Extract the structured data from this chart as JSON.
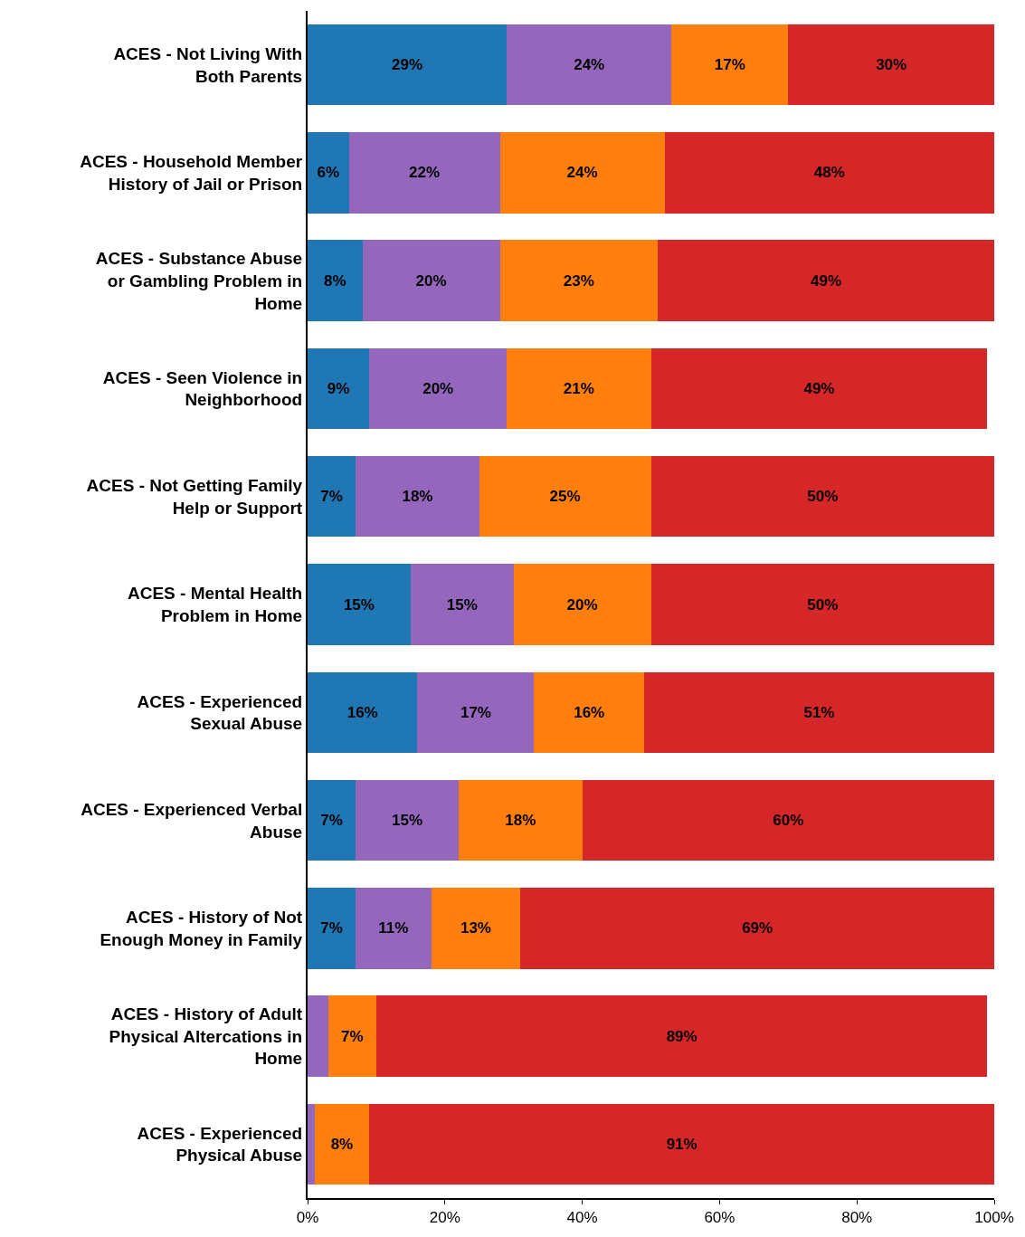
{
  "chart_data": {
    "type": "bar",
    "orientation": "horizontal",
    "stacked": true,
    "categories": [
      "ACES - Not Living With\nBoth Parents",
      "ACES - Household Member\nHistory of Jail or Prison",
      "ACES - Substance Abuse\nor Gambling Problem in\nHome",
      "ACES - Seen Violence in\nNeighborhood",
      "ACES - Not Getting Family\nHelp or Support",
      "ACES - Mental Health\nProblem in Home",
      "ACES - Experienced\nSexual Abuse",
      "ACES - Experienced Verbal\nAbuse",
      "ACES - History of Not\nEnough Money in Family",
      "ACES - History of Adult\nPhysical Altercations in\nHome",
      "ACES - Experienced\nPhysical Abuse"
    ],
    "series": [
      {
        "color": "#1f77b4",
        "values": [
          29,
          6,
          8,
          9,
          7,
          15,
          16,
          7,
          7,
          null,
          null
        ],
        "value_labels": [
          "29%",
          "6%",
          "8%",
          "9%",
          "7%",
          "15%",
          "16%",
          "7%",
          "7%",
          null,
          null
        ]
      },
      {
        "color": "#9467bd",
        "values": [
          24,
          22,
          20,
          20,
          18,
          15,
          17,
          15,
          11,
          3,
          1
        ],
        "value_labels": [
          "24%",
          "22%",
          "20%",
          "20%",
          "18%",
          "15%",
          "17%",
          "15%",
          "11%",
          null,
          null
        ]
      },
      {
        "color": "#ff7f0e",
        "values": [
          17,
          24,
          23,
          21,
          25,
          20,
          16,
          18,
          13,
          7,
          8
        ],
        "value_labels": [
          "17%",
          "24%",
          "23%",
          "21%",
          "25%",
          "20%",
          "16%",
          "18%",
          "13%",
          "7%",
          "8%"
        ]
      },
      {
        "color": "#d62728",
        "values": [
          30,
          48,
          49,
          49,
          50,
          50,
          51,
          60,
          69,
          89,
          91
        ],
        "value_labels": [
          "30%",
          "48%",
          "49%",
          "49%",
          "50%",
          "50%",
          "51%",
          "60%",
          "69%",
          "89%",
          "91%"
        ]
      }
    ],
    "xlim": [
      0,
      100
    ],
    "xticks": [
      {
        "value": 0,
        "label": "0%"
      },
      {
        "value": 20,
        "label": "20%"
      },
      {
        "value": 40,
        "label": "40%"
      },
      {
        "value": 60,
        "label": "60%"
      },
      {
        "value": 80,
        "label": "80%"
      },
      {
        "value": 100,
        "label": "100%"
      }
    ]
  }
}
